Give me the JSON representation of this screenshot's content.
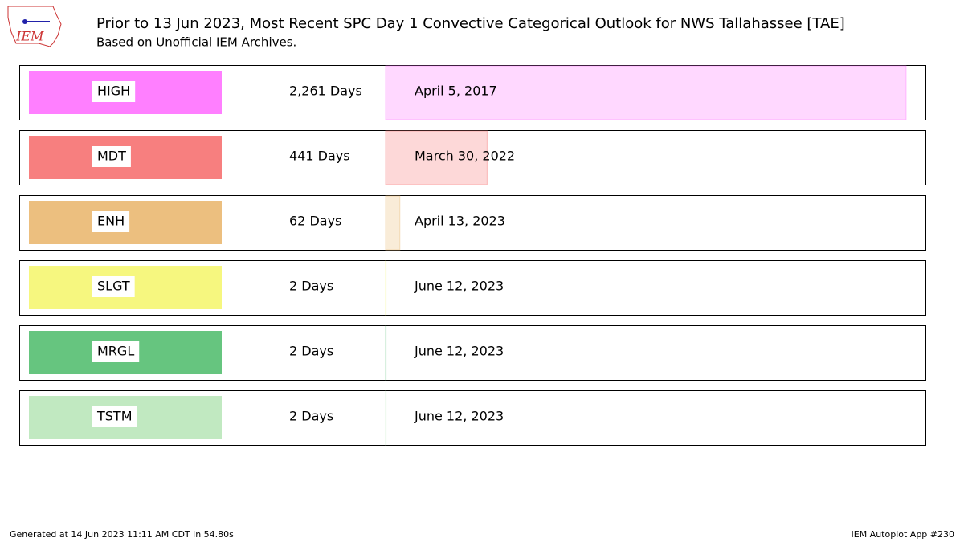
{
  "chart_data": {
    "type": "barh",
    "title": "Prior to 13 Jun 2023, Most Recent SPC Day 1 Convective Categorical Outlook for NWS Tallahassee [TAE]",
    "subtitle": "Based on Unofficial IEM Archives.",
    "categories": [
      "HIGH",
      "MDT",
      "ENH",
      "SLGT",
      "MRGL",
      "TSTM"
    ],
    "values": [
      2261,
      441,
      62,
      2,
      2,
      2
    ],
    "value_labels": [
      "2,261 Days",
      "441 Days",
      "62 Days",
      "2 Days",
      "2 Days",
      "2 Days"
    ],
    "dates": [
      "April 5, 2017",
      "March 30, 2022",
      "April 13, 2023",
      "June 12, 2023",
      "June 12, 2023",
      "June 12, 2023"
    ],
    "colors": [
      "#ff7fff",
      "#f77f7f",
      "#ecbf7f",
      "#f6f77f",
      "#66c57f",
      "#c1e9c1"
    ],
    "xlim": [
      0,
      2345
    ],
    "logo": "IEM",
    "footer_left": "Generated at 14 Jun 2023 11:11 AM CDT in 54.80s",
    "footer_right": "IEM Autoplot App #230"
  }
}
